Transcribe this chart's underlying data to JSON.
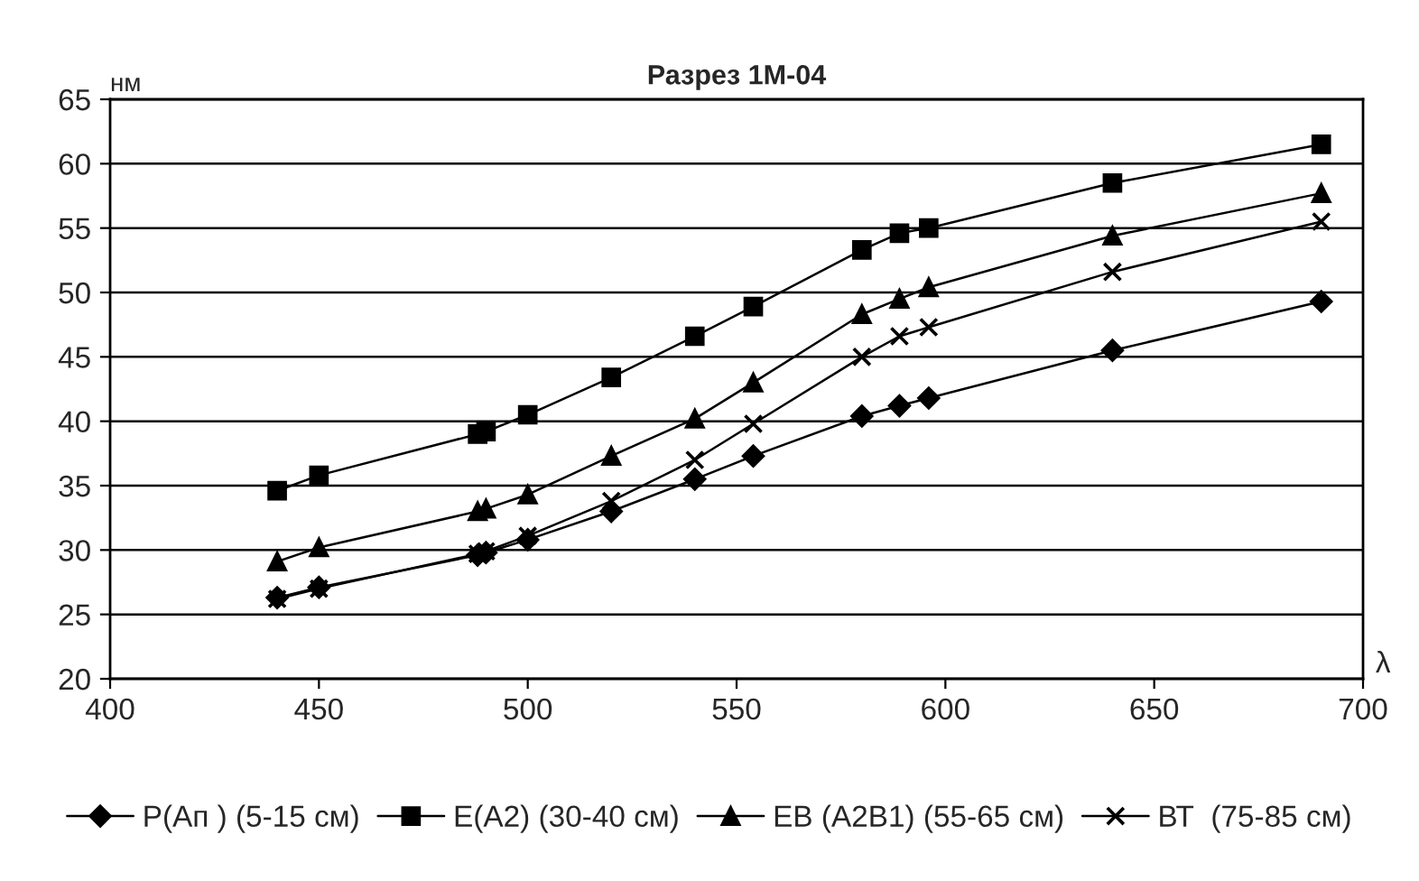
{
  "chart_data": {
    "type": "line",
    "title": "Разрез 1М-04",
    "ylabel": "нм",
    "xlabel": "λ",
    "x": [
      440,
      450,
      488,
      490,
      500,
      520,
      540,
      554,
      580,
      589,
      596,
      640,
      690
    ],
    "series": [
      {
        "name": "Р(Ап ) (5-15 см)",
        "color": "#000000",
        "marker": "diamond",
        "values": [
          26.3,
          27.1,
          29.6,
          29.8,
          30.8,
          33.0,
          35.5,
          37.3,
          40.4,
          41.2,
          41.8,
          45.5,
          49.3
        ]
      },
      {
        "name": "Е(А2) (30-40 см)",
        "color": "#000000",
        "marker": "square",
        "values": [
          34.6,
          35.8,
          39.0,
          39.2,
          40.5,
          43.4,
          46.6,
          48.9,
          53.3,
          54.6,
          55.0,
          58.5,
          61.5
        ]
      },
      {
        "name": "ЕВ (А2В1) (55-65 см)",
        "color": "#000000",
        "marker": "triangle",
        "values": [
          29.1,
          30.2,
          33.0,
          33.2,
          34.3,
          37.3,
          40.2,
          43.0,
          48.3,
          49.5,
          50.4,
          54.4,
          57.7
        ]
      },
      {
        "name": "ВТ  (75-85 см)",
        "color": "#000000",
        "marker": "cross",
        "values": [
          26.2,
          27.0,
          29.7,
          29.9,
          31.1,
          33.8,
          37.0,
          39.8,
          45.0,
          46.6,
          47.3,
          51.6,
          55.5
        ]
      }
    ],
    "xlim": [
      400,
      700
    ],
    "xticks": [
      400,
      450,
      500,
      550,
      600,
      650,
      700
    ],
    "ylim": [
      20,
      65
    ],
    "yticks": [
      20,
      25,
      30,
      35,
      40,
      45,
      50,
      55,
      60,
      65
    ],
    "grid": "y",
    "legend": "bottom"
  }
}
